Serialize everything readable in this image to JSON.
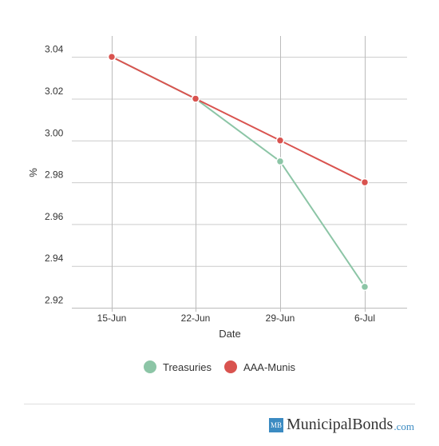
{
  "chart_data": {
    "type": "line",
    "categories": [
      "15-Jun",
      "22-Jun",
      "29-Jun",
      "6-Jul"
    ],
    "series": [
      {
        "name": "Treasuries",
        "values": [
          3.04,
          3.02,
          2.99,
          2.93
        ],
        "color": "#8cc5a6"
      },
      {
        "name": "AAA-Munis",
        "values": [
          3.04,
          3.02,
          3.0,
          2.98
        ],
        "color": "#d9534f"
      }
    ],
    "xlabel": "Date",
    "ylabel": "%",
    "ylim": [
      2.92,
      3.05
    ],
    "yticks": [
      "2.92",
      "2.94",
      "2.96",
      "2.98",
      "3.00",
      "3.02",
      "3.04"
    ],
    "grid": true,
    "legend_position": "bottom"
  },
  "brand": {
    "logo_text": "MB",
    "name": "MunicipalBonds",
    "tld": ".com"
  }
}
